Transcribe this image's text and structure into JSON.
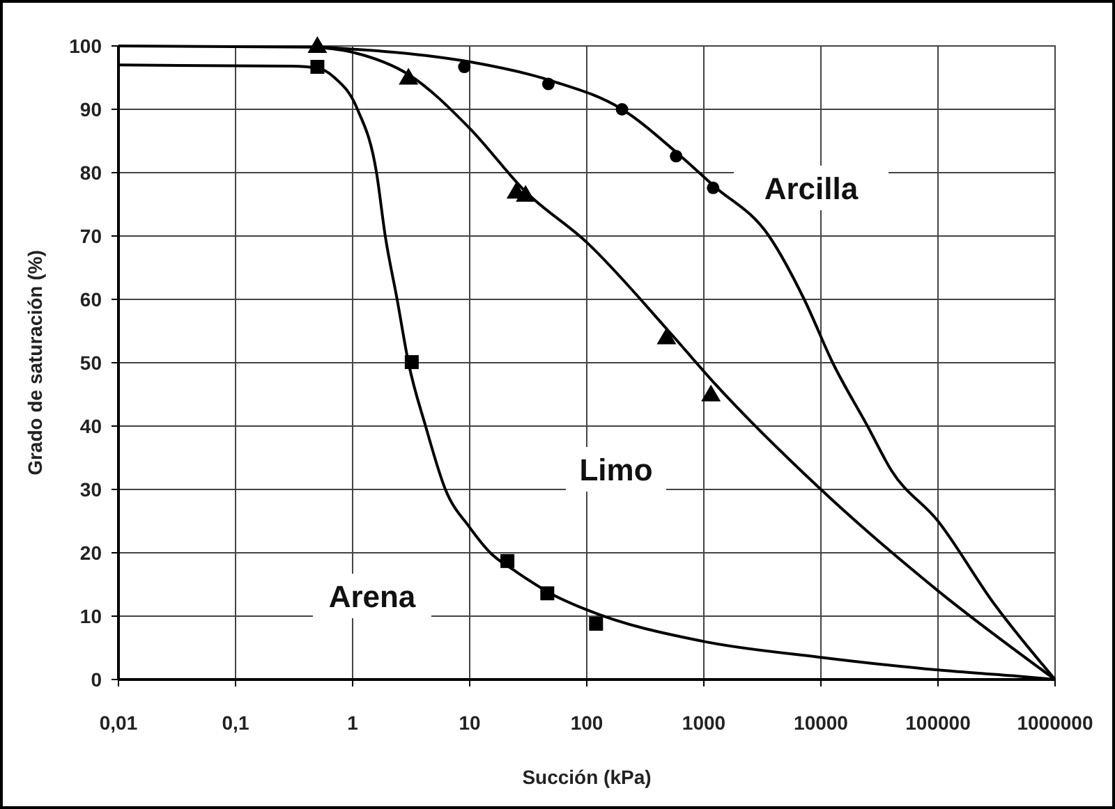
{
  "chart_data": {
    "type": "scatter",
    "xlabel": "Succión (kPa)",
    "ylabel": "Grado de saturación (%)",
    "log": "x",
    "grid": true,
    "xlim": [
      0.01,
      1000000
    ],
    "ylim": [
      0,
      100
    ],
    "xticks": [
      {
        "value": 0.01,
        "label": "0,01"
      },
      {
        "value": 0.1,
        "label": "0,1"
      },
      1,
      10,
      100,
      1000,
      10000,
      100000,
      1000000
    ],
    "yticks": [
      0,
      10,
      20,
      30,
      40,
      50,
      60,
      70,
      80,
      90,
      100
    ],
    "series": [
      {
        "type": "line",
        "marker": "none",
        "color": "#000000",
        "x": [
          0.01,
          0.5,
          1,
          3,
          10,
          50,
          200,
          600,
          1200,
          3600,
          7200,
          12600,
          25000,
          40000,
          100000,
          300000,
          1000000
        ],
        "values": [
          100,
          99.8,
          99.5,
          98.8,
          97.5,
          94.5,
          90,
          83,
          78,
          70,
          60,
          50,
          40,
          33,
          25,
          12,
          0
        ]
      },
      {
        "marker": "circle",
        "color": "#000000",
        "x": [
          9,
          47,
          200,
          580,
          1200
        ],
        "values": [
          96.7,
          94,
          90,
          82.6,
          77.6
        ]
      },
      {
        "type": "line",
        "marker": "none",
        "color": "#000000",
        "x": [
          0.5,
          1,
          3,
          10,
          30,
          100,
          500,
          1200,
          10000,
          100000,
          1000000
        ],
        "values": [
          99.8,
          99,
          95.5,
          87,
          77,
          69,
          55,
          47,
          30,
          14,
          0
        ]
      },
      {
        "marker": "triangle",
        "color": "#000000",
        "x": [
          0.5,
          3,
          25,
          30,
          480,
          1150
        ],
        "values": [
          100,
          95,
          77,
          76.5,
          54,
          45
        ]
      },
      {
        "type": "line",
        "marker": "none",
        "color": "#000000",
        "x": [
          0.01,
          0.3,
          0.5,
          0.7,
          1.1,
          1.6,
          1.9,
          2.4,
          3,
          4.2,
          6.2,
          10,
          15,
          25,
          50,
          100,
          1000,
          10000,
          100000,
          500000,
          1000000
        ],
        "values": [
          97,
          96.8,
          96.5,
          95,
          90,
          80,
          70,
          60,
          50,
          40,
          30,
          24,
          20,
          17,
          13.5,
          11,
          6,
          3.5,
          1.5,
          0.5,
          0
        ]
      },
      {
        "marker": "square",
        "color": "#000000",
        "x": [
          0.5,
          3.2,
          21,
          46,
          120
        ],
        "values": [
          96.7,
          50.1,
          18.7,
          13.6,
          8.8
        ]
      }
    ],
    "annotations": [
      "Arcilla",
      "Limo",
      "Arena"
    ]
  }
}
